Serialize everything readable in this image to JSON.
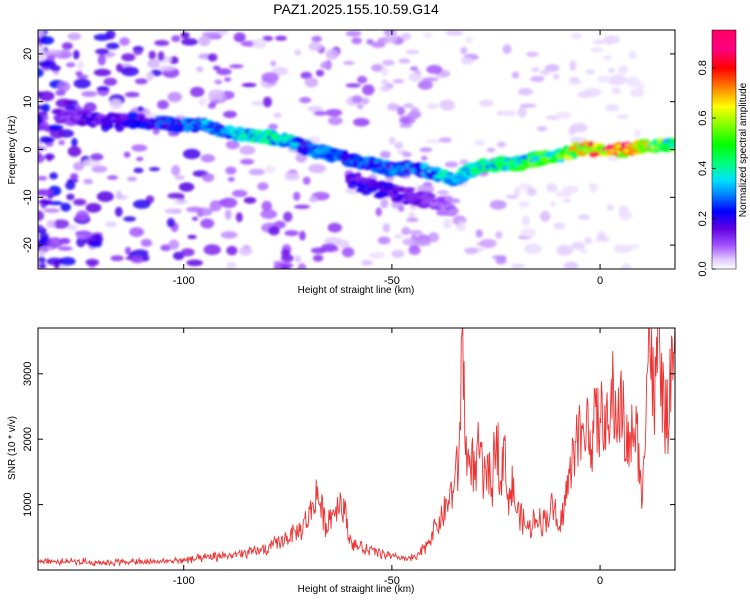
{
  "figure": {
    "title": "PAZ1.2025.155.10.59.G14"
  },
  "chart_data": [
    {
      "type": "heatmap",
      "xlabel": "Height of straight line (km)",
      "ylabel": "Frequency (Hz)",
      "xlim": [
        -135,
        18
      ],
      "ylim": [
        -25,
        25
      ],
      "xticks": [
        -100,
        -50,
        0
      ],
      "yticks": [
        -20,
        -10,
        0,
        10,
        20
      ],
      "colorbar": {
        "label": "Normalized spectral amplitude",
        "range": [
          0,
          0.95
        ],
        "ticks": [
          0.0,
          0.2,
          0.4,
          0.6,
          0.8
        ],
        "colormap": "rainbow"
      },
      "ridge": {
        "x": [
          -130,
          -120,
          -110,
          -100,
          -95,
          -90,
          -85,
          -80,
          -75,
          -70,
          -65,
          -60,
          -55,
          -50,
          -45,
          -40,
          -35,
          -30,
          -25,
          -20,
          -15,
          -10,
          -5,
          0,
          5,
          10,
          15,
          18
        ],
        "frequency": [
          7,
          6,
          6,
          5,
          5,
          4,
          3,
          2.5,
          2,
          0,
          -1,
          -2,
          -3,
          -4,
          -4,
          -5,
          -6,
          -4,
          -3,
          -3,
          -2,
          -1,
          0,
          0,
          0,
          0.5,
          1,
          1
        ],
        "amplitude": [
          0.15,
          0.2,
          0.25,
          0.3,
          0.35,
          0.35,
          0.45,
          0.45,
          0.4,
          0.3,
          0.35,
          0.3,
          0.3,
          0.3,
          0.3,
          0.35,
          0.4,
          0.45,
          0.5,
          0.5,
          0.55,
          0.6,
          0.75,
          0.85,
          0.85,
          0.9,
          0.6,
          0.5
        ]
      },
      "secondary_branch": {
        "x": [
          -60,
          -55,
          -50,
          -45,
          -40,
          -35
        ],
        "frequency": [
          -6,
          -8,
          -9,
          -10,
          -11,
          -12
        ],
        "amplitude": [
          0.2,
          0.25,
          0.2,
          0.2,
          0.15,
          0.1
        ]
      }
    },
    {
      "type": "line",
      "xlabel": "Height of straight line (km)",
      "ylabel": "SNR (10 * v/v)",
      "xlim": [
        -135,
        18
      ],
      "ylim": [
        0,
        3700
      ],
      "xticks": [
        -100,
        -50,
        0
      ],
      "yticks": [
        1000,
        2000,
        3000
      ],
      "color": "#ee3333",
      "series": [
        {
          "x": [
            -135,
            -130,
            -125,
            -120,
            -115,
            -110,
            -105,
            -100,
            -95,
            -90,
            -85,
            -80,
            -75,
            -72,
            -70,
            -68,
            -66,
            -64,
            -62,
            -60,
            -58,
            -56,
            -54,
            -52,
            -50,
            -48,
            -46,
            -44,
            -42,
            -40,
            -38,
            -36,
            -34,
            -33,
            -32,
            -31,
            -30,
            -29,
            -28,
            -27,
            -26,
            -25,
            -24,
            -23,
            -22,
            -21,
            -20,
            -19,
            -18,
            -17,
            -16,
            -15,
            -14,
            -13,
            -12,
            -11,
            -10,
            -9,
            -8,
            -7,
            -6,
            -5,
            -4,
            -3,
            -2,
            -1,
            0,
            1,
            2,
            3,
            4,
            5,
            6,
            7,
            8,
            9,
            10,
            11,
            12,
            13,
            14,
            15,
            16,
            17,
            18
          ],
          "y": [
            150,
            120,
            130,
            110,
            125,
            120,
            130,
            150,
            180,
            220,
            250,
            320,
            500,
            600,
            800,
            1200,
            700,
            900,
            1100,
            450,
            350,
            300,
            280,
            250,
            200,
            180,
            170,
            200,
            350,
            600,
            800,
            1100,
            1600,
            3600,
            1500,
            1800,
            1400,
            1900,
            1300,
            1600,
            1200,
            2200,
            1500,
            1800,
            1100,
            1300,
            900,
            800,
            700,
            600,
            750,
            850,
            700,
            800,
            900,
            1000,
            500,
            900,
            1200,
            1500,
            2000,
            2200,
            1800,
            2400,
            2000,
            2300,
            2200,
            2500,
            2000,
            2700,
            2300,
            2600,
            2100,
            1800,
            2200,
            2000,
            1000,
            2800,
            3700,
            2400,
            3500,
            2700,
            2200,
            2800,
            3100
          ]
        }
      ]
    }
  ]
}
